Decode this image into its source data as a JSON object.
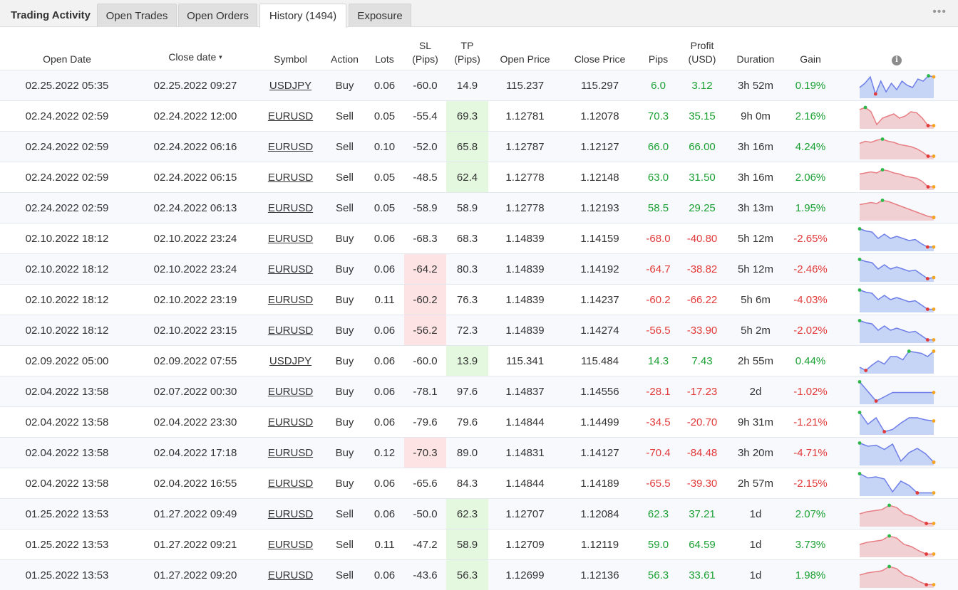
{
  "tabs": {
    "title": "Trading Activity",
    "open_trades": "Open Trades",
    "open_orders": "Open Orders",
    "history": "History (1494)",
    "exposure": "Exposure",
    "more": "•••"
  },
  "columns": {
    "open_date": "Open Date",
    "close_date": "Close date",
    "sort_indicator": "▾",
    "symbol": "Symbol",
    "action": "Action",
    "lots": "Lots",
    "sl_1": "SL",
    "sl_2": "(Pips)",
    "tp_1": "TP",
    "tp_2": "(Pips)",
    "open_price": "Open Price",
    "close_price": "Close Price",
    "pips": "Pips",
    "profit_1": "Profit",
    "profit_2": "(USD)",
    "duration": "Duration",
    "gain": "Gain",
    "info": "i"
  },
  "colors": {
    "positive": "#1aa033",
    "negative": "#e23a3a",
    "hl_green": "#e3f8df",
    "hl_red": "#fde3e3"
  },
  "rows": [
    {
      "open": "02.25.2022 05:35",
      "close": "02.25.2022 09:27",
      "symbol": "USDJPY",
      "action": "Buy",
      "lots": "0.06",
      "sl": "-60.0",
      "tp": "14.9",
      "open_price": "115.237",
      "close_price": "115.297",
      "pips": "6.0",
      "profit": "3.12",
      "duration": "3h 52m",
      "gain": "0.19%",
      "hl": "",
      "spark": [
        0.6,
        0.4,
        0.1,
        0.9,
        0.3,
        0.8,
        0.4,
        0.7,
        0.3,
        0.5,
        0.6,
        0.2,
        0.3,
        0.05,
        0.1
      ]
    },
    {
      "open": "02.24.2022 02:59",
      "close": "02.24.2022 12:00",
      "symbol": "EURUSD",
      "action": "Sell",
      "lots": "0.05",
      "sl": "-55.4",
      "tp": "69.3",
      "open_price": "1.12781",
      "close_price": "1.12078",
      "pips": "70.3",
      "profit": "35.15",
      "duration": "9h 0m",
      "gain": "2.16%",
      "hl": "tp",
      "spark": [
        0.2,
        0.1,
        0.3,
        0.9,
        0.6,
        0.5,
        0.4,
        0.6,
        0.5,
        0.3,
        0.35,
        0.6,
        0.95,
        0.95
      ]
    },
    {
      "open": "02.24.2022 02:59",
      "close": "02.24.2022 06:16",
      "symbol": "EURUSD",
      "action": "Sell",
      "lots": "0.10",
      "sl": "-52.0",
      "tp": "65.8",
      "open_price": "1.12787",
      "close_price": "1.12127",
      "pips": "66.0",
      "profit": "66.00",
      "duration": "3h 16m",
      "gain": "4.24%",
      "hl": "tp",
      "spark": [
        0.35,
        0.25,
        0.3,
        0.2,
        0.15,
        0.25,
        0.3,
        0.4,
        0.45,
        0.5,
        0.6,
        0.75,
        0.95,
        0.95
      ]
    },
    {
      "open": "02.24.2022 02:59",
      "close": "02.24.2022 06:15",
      "symbol": "EURUSD",
      "action": "Sell",
      "lots": "0.05",
      "sl": "-48.5",
      "tp": "62.4",
      "open_price": "1.12778",
      "close_price": "1.12148",
      "pips": "63.0",
      "profit": "31.50",
      "duration": "3h 16m",
      "gain": "2.06%",
      "hl": "tp",
      "spark": [
        0.35,
        0.3,
        0.25,
        0.3,
        0.15,
        0.2,
        0.3,
        0.35,
        0.45,
        0.5,
        0.55,
        0.7,
        0.95,
        0.95
      ]
    },
    {
      "open": "02.24.2022 02:59",
      "close": "02.24.2022 06:13",
      "symbol": "EURUSD",
      "action": "Sell",
      "lots": "0.05",
      "sl": "-58.9",
      "tp": "58.9",
      "open_price": "1.12778",
      "close_price": "1.12193",
      "pips": "58.5",
      "profit": "29.25",
      "duration": "3h 13m",
      "gain": "1.95%",
      "hl": "",
      "spark": [
        0.35,
        0.3,
        0.25,
        0.3,
        0.15,
        0.2,
        0.3,
        0.4,
        0.5,
        0.6,
        0.7,
        0.8,
        0.9,
        0.95
      ]
    },
    {
      "open": "02.10.2022 18:12",
      "close": "02.10.2022 23:24",
      "symbol": "EURUSD",
      "action": "Buy",
      "lots": "0.06",
      "sl": "-68.3",
      "tp": "68.3",
      "open_price": "1.14839",
      "close_price": "1.14159",
      "pips": "-68.0",
      "profit": "-40.80",
      "duration": "5h 12m",
      "gain": "-2.65%",
      "hl": "",
      "spark": [
        0.05,
        0.15,
        0.2,
        0.5,
        0.3,
        0.5,
        0.4,
        0.5,
        0.6,
        0.55,
        0.75,
        0.9,
        0.9
      ]
    },
    {
      "open": "02.10.2022 18:12",
      "close": "02.10.2022 23:24",
      "symbol": "EURUSD",
      "action": "Buy",
      "lots": "0.06",
      "sl": "-64.2",
      "tp": "80.3",
      "open_price": "1.14839",
      "close_price": "1.14192",
      "pips": "-64.7",
      "profit": "-38.82",
      "duration": "5h 12m",
      "gain": "-2.46%",
      "hl": "sl",
      "spark": [
        0.05,
        0.15,
        0.2,
        0.5,
        0.3,
        0.5,
        0.4,
        0.5,
        0.6,
        0.55,
        0.75,
        0.95,
        0.9
      ]
    },
    {
      "open": "02.10.2022 18:12",
      "close": "02.10.2022 23:19",
      "symbol": "EURUSD",
      "action": "Buy",
      "lots": "0.11",
      "sl": "-60.2",
      "tp": "76.3",
      "open_price": "1.14839",
      "close_price": "1.14237",
      "pips": "-60.2",
      "profit": "-66.22",
      "duration": "5h 6m",
      "gain": "-4.03%",
      "hl": "sl",
      "spark": [
        0.05,
        0.15,
        0.2,
        0.5,
        0.3,
        0.5,
        0.4,
        0.5,
        0.6,
        0.55,
        0.75,
        0.95,
        0.95
      ]
    },
    {
      "open": "02.10.2022 18:12",
      "close": "02.10.2022 23:15",
      "symbol": "EURUSD",
      "action": "Buy",
      "lots": "0.06",
      "sl": "-56.2",
      "tp": "72.3",
      "open_price": "1.14839",
      "close_price": "1.14274",
      "pips": "-56.5",
      "profit": "-33.90",
      "duration": "5h 2m",
      "gain": "-2.02%",
      "hl": "sl",
      "spark": [
        0.05,
        0.15,
        0.2,
        0.5,
        0.3,
        0.5,
        0.4,
        0.5,
        0.6,
        0.55,
        0.75,
        0.95,
        0.95
      ]
    },
    {
      "open": "02.09.2022 05:00",
      "close": "02.09.2022 07:55",
      "symbol": "USDJPY",
      "action": "Buy",
      "lots": "0.06",
      "sl": "-60.0",
      "tp": "13.9",
      "open_price": "115.341",
      "close_price": "115.484",
      "pips": "14.3",
      "profit": "7.43",
      "duration": "2h 55m",
      "gain": "0.44%",
      "hl": "tp",
      "spark": [
        0.8,
        0.95,
        0.7,
        0.5,
        0.65,
        0.3,
        0.3,
        0.45,
        0.05,
        0.1,
        0.15,
        0.3,
        0.05
      ]
    },
    {
      "open": "02.04.2022 13:58",
      "close": "02.07.2022 00:30",
      "symbol": "EURUSD",
      "action": "Buy",
      "lots": "0.06",
      "sl": "-78.1",
      "tp": "97.6",
      "open_price": "1.14837",
      "close_price": "1.14556",
      "pips": "-28.1",
      "profit": "-17.23",
      "duration": "2d",
      "gain": "-1.02%",
      "hl": "",
      "spark": [
        0.05,
        0.5,
        0.95,
        0.75,
        0.55,
        0.55,
        0.55,
        0.55,
        0.55,
        0.55
      ]
    },
    {
      "open": "02.04.2022 13:58",
      "close": "02.04.2022 23:30",
      "symbol": "EURUSD",
      "action": "Buy",
      "lots": "0.06",
      "sl": "-79.6",
      "tp": "79.6",
      "open_price": "1.14844",
      "close_price": "1.14499",
      "pips": "-34.5",
      "profit": "-20.70",
      "duration": "9h 31m",
      "gain": "-1.21%",
      "hl": "",
      "spark": [
        0.05,
        0.6,
        0.3,
        0.95,
        0.85,
        0.55,
        0.3,
        0.3,
        0.4,
        0.45
      ]
    },
    {
      "open": "02.04.2022 13:58",
      "close": "02.04.2022 17:18",
      "symbol": "EURUSD",
      "action": "Buy",
      "lots": "0.12",
      "sl": "-70.3",
      "tp": "89.0",
      "open_price": "1.14831",
      "close_price": "1.14127",
      "pips": "-70.4",
      "profit": "-84.48",
      "duration": "3h 20m",
      "gain": "-4.71%",
      "hl": "sl",
      "spark": [
        0.05,
        0.2,
        0.15,
        0.35,
        0.1,
        0.9,
        0.5,
        0.3,
        0.55,
        0.95
      ]
    },
    {
      "open": "02.04.2022 13:58",
      "close": "02.04.2022 16:55",
      "symbol": "EURUSD",
      "action": "Buy",
      "lots": "0.06",
      "sl": "-65.6",
      "tp": "84.3",
      "open_price": "1.14844",
      "close_price": "1.14189",
      "pips": "-65.5",
      "profit": "-39.30",
      "duration": "2h 57m",
      "gain": "-2.15%",
      "hl": "",
      "spark": [
        0.05,
        0.25,
        0.2,
        0.3,
        0.9,
        0.4,
        0.6,
        0.95,
        0.95,
        0.95
      ]
    },
    {
      "open": "01.25.2022 13:53",
      "close": "01.27.2022 09:49",
      "symbol": "EURUSD",
      "action": "Sell",
      "lots": "0.06",
      "sl": "-50.0",
      "tp": "62.3",
      "open_price": "1.12707",
      "close_price": "1.12084",
      "pips": "62.3",
      "profit": "37.21",
      "duration": "1d",
      "gain": "2.07%",
      "hl": "tp",
      "spark": [
        0.5,
        0.4,
        0.35,
        0.3,
        0.1,
        0.2,
        0.5,
        0.6,
        0.8,
        0.95,
        0.95
      ]
    },
    {
      "open": "01.25.2022 13:53",
      "close": "01.27.2022 09:21",
      "symbol": "EURUSD",
      "action": "Sell",
      "lots": "0.11",
      "sl": "-47.2",
      "tp": "58.9",
      "open_price": "1.12709",
      "close_price": "1.12119",
      "pips": "59.0",
      "profit": "64.59",
      "duration": "1d",
      "gain": "3.73%",
      "hl": "tp",
      "spark": [
        0.5,
        0.4,
        0.35,
        0.3,
        0.1,
        0.2,
        0.5,
        0.6,
        0.8,
        0.95,
        0.95
      ]
    },
    {
      "open": "01.25.2022 13:53",
      "close": "01.27.2022 09:20",
      "symbol": "EURUSD",
      "action": "Sell",
      "lots": "0.06",
      "sl": "-43.6",
      "tp": "56.3",
      "open_price": "1.12699",
      "close_price": "1.12136",
      "pips": "56.3",
      "profit": "33.61",
      "duration": "1d",
      "gain": "1.98%",
      "hl": "tp",
      "spark": [
        0.5,
        0.4,
        0.35,
        0.3,
        0.1,
        0.2,
        0.5,
        0.6,
        0.8,
        0.95,
        0.95
      ]
    }
  ]
}
